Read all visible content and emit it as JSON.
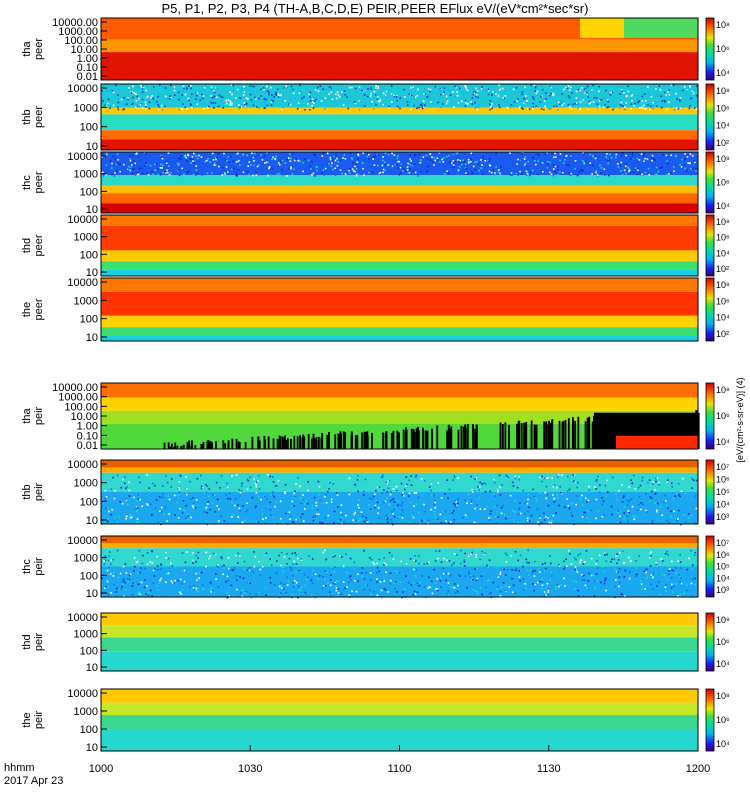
{
  "title": "P5, P1, P2, P3, P4 (TH-A,B,C,D,E) PEIR,PEER EFlux eV/(eV*cm²*sec*sr)",
  "footer": {
    "time_label": "hhmm",
    "date_label": "2017 Apr 23"
  },
  "colorbar_unit_label": "[eV/(cm²-s-sr-eV)] (4)",
  "chart_data": {
    "type": "heatmap",
    "x_axis": {
      "ticks": [
        "1000",
        "1030",
        "1100",
        "1130",
        "1200"
      ],
      "range": [
        "10:00",
        "12:00"
      ]
    },
    "panels": [
      {
        "probe": "tha",
        "species": "peer",
        "y_ticks": [
          "10000.00",
          "1000.00",
          "100.00",
          "10.00",
          "1.00",
          "0.10",
          "0.01"
        ],
        "cbar_ticks": [
          "10⁸",
          "10⁶",
          "10⁴"
        ],
        "pattern": "tha_peer"
      },
      {
        "probe": "thb",
        "species": "peer",
        "y_ticks": [
          "10000",
          "1000",
          "100",
          "10"
        ],
        "cbar_ticks": [
          "10⁸",
          "10⁶",
          "10⁴",
          "10²"
        ],
        "pattern": "band_peer"
      },
      {
        "probe": "thc",
        "species": "peer",
        "y_ticks": [
          "10000",
          "1000",
          "100",
          "10"
        ],
        "cbar_ticks": [
          "10⁸",
          "10⁶",
          "10⁴"
        ],
        "pattern": "noisy_peer"
      },
      {
        "probe": "thd",
        "species": "peer",
        "y_ticks": [
          "10000",
          "1000",
          "100",
          "10"
        ],
        "cbar_ticks": [
          "10⁸",
          "10⁶",
          "10⁴",
          "10²"
        ],
        "pattern": "broad_peer"
      },
      {
        "probe": "the",
        "species": "peer",
        "y_ticks": [
          "10000",
          "1000",
          "100",
          "10"
        ],
        "cbar_ticks": [
          "10⁸",
          "10⁶",
          "10⁴",
          "10²"
        ],
        "pattern": "broad_peer2"
      },
      {
        "probe": "tha",
        "species": "peir",
        "y_ticks": [
          "10000.00",
          "1000.00",
          "100.00",
          "10.00",
          "1.00",
          "0.10",
          "0.01"
        ],
        "cbar_ticks": [
          "10⁸",
          "10⁶",
          "10⁴"
        ],
        "pattern": "tha_peir"
      },
      {
        "probe": "thb",
        "species": "peir",
        "y_ticks": [
          "10000",
          "1000",
          "100",
          "10"
        ],
        "cbar_ticks": [
          "10⁷",
          "10⁶",
          "10⁵",
          "10⁴",
          "10³"
        ],
        "pattern": "noisy_peir"
      },
      {
        "probe": "thc",
        "species": "peir",
        "y_ticks": [
          "10000",
          "1000",
          "100",
          "10"
        ],
        "cbar_ticks": [
          "10⁷",
          "10⁶",
          "10⁵",
          "10⁴",
          "10³"
        ],
        "pattern": "noisy_peir"
      },
      {
        "probe": "thd",
        "species": "peir",
        "y_ticks": [
          "10000",
          "1000",
          "100",
          "10"
        ],
        "cbar_ticks": [
          "10⁸",
          "10⁶",
          "10⁴"
        ],
        "pattern": "smooth_peir"
      },
      {
        "probe": "the",
        "species": "peir",
        "y_ticks": [
          "10000",
          "1000",
          "100",
          "10"
        ],
        "cbar_ticks": [
          "10⁸",
          "10⁶",
          "10⁴"
        ],
        "pattern": "smooth_peir"
      }
    ]
  }
}
